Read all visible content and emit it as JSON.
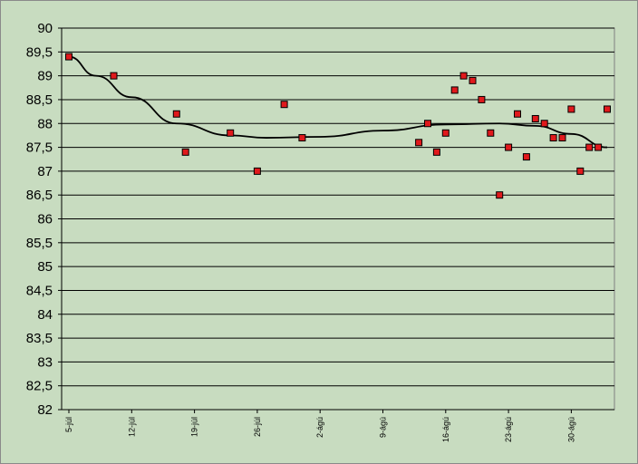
{
  "chart_data": {
    "type": "scatter",
    "title": "",
    "xlabel": "",
    "ylabel": "",
    "ylim": [
      82,
      90
    ],
    "yticks": [
      "90",
      "89,5",
      "89",
      "88,5",
      "88",
      "87,5",
      "87",
      "86,5",
      "86",
      "85,5",
      "85",
      "84,5",
      "84",
      "83,5",
      "83",
      "82,5",
      "82"
    ],
    "xticks": [
      "5-júl",
      "12-júl",
      "19-júl",
      "26-júl",
      "2-ágú",
      "9-ágú",
      "16-ágú",
      "23-ágú",
      "30-ágú"
    ],
    "grid": true,
    "legend": "none",
    "x_axis_unit": "days from 5-júl",
    "points": [
      {
        "x": 0,
        "y": 89.4
      },
      {
        "x": 5,
        "y": 89.0
      },
      {
        "x": 12,
        "y": 88.2
      },
      {
        "x": 13,
        "y": 87.4
      },
      {
        "x": 18,
        "y": 87.8
      },
      {
        "x": 21,
        "y": 87.0
      },
      {
        "x": 24,
        "y": 88.4
      },
      {
        "x": 26,
        "y": 87.7
      },
      {
        "x": 39,
        "y": 87.6
      },
      {
        "x": 40,
        "y": 88.0
      },
      {
        "x": 41,
        "y": 87.4
      },
      {
        "x": 42,
        "y": 87.8
      },
      {
        "x": 43,
        "y": 88.7
      },
      {
        "x": 44,
        "y": 89.0
      },
      {
        "x": 45,
        "y": 88.9
      },
      {
        "x": 46,
        "y": 88.5
      },
      {
        "x": 47,
        "y": 87.8
      },
      {
        "x": 48,
        "y": 86.5
      },
      {
        "x": 49,
        "y": 87.5
      },
      {
        "x": 50,
        "y": 88.2
      },
      {
        "x": 51,
        "y": 87.3
      },
      {
        "x": 52,
        "y": 88.1
      },
      {
        "x": 53,
        "y": 88.0
      },
      {
        "x": 54,
        "y": 87.7
      },
      {
        "x": 55,
        "y": 87.7
      },
      {
        "x": 56,
        "y": 88.3
      },
      {
        "x": 57,
        "y": 87.0
      },
      {
        "x": 58,
        "y": 87.5
      },
      {
        "x": 59,
        "y": 87.5
      },
      {
        "x": 60,
        "y": 88.3
      }
    ],
    "trendline": [
      {
        "x": 0,
        "y": 89.4
      },
      {
        "x": 3,
        "y": 89.0
      },
      {
        "x": 7,
        "y": 88.55
      },
      {
        "x": 12,
        "y": 88.0
      },
      {
        "x": 18,
        "y": 87.75
      },
      {
        "x": 22,
        "y": 87.7
      },
      {
        "x": 28,
        "y": 87.72
      },
      {
        "x": 35,
        "y": 87.85
      },
      {
        "x": 42,
        "y": 87.98
      },
      {
        "x": 48,
        "y": 88.0
      },
      {
        "x": 52,
        "y": 87.95
      },
      {
        "x": 56,
        "y": 87.78
      },
      {
        "x": 60,
        "y": 87.5
      }
    ],
    "colors": {
      "background": "#c8dcc0",
      "marker": "#e0191c",
      "trendline": "#000000",
      "grid": "#000000"
    }
  }
}
